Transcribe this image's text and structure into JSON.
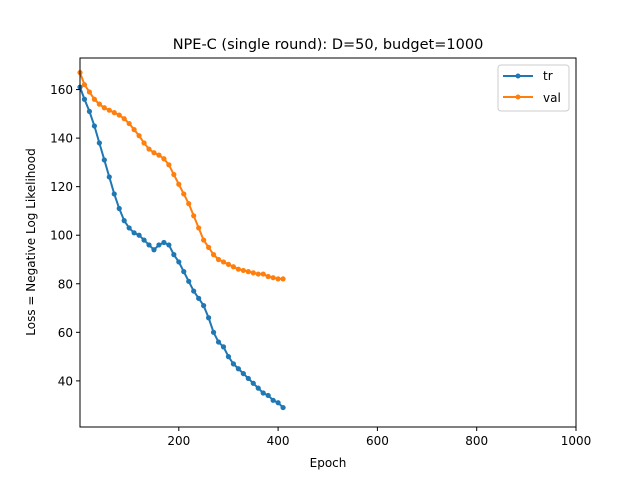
{
  "chart_data": {
    "type": "line",
    "title": "NPE-C (single round): D=50, budget=1000",
    "xlabel": "Epoch",
    "ylabel": "Loss = Negative Log Likelihood",
    "xlim": [
      1,
      1000
    ],
    "ylim": [
      21,
      173
    ],
    "xticks": [
      200,
      400,
      600,
      800,
      1000
    ],
    "yticks": [
      40,
      60,
      80,
      100,
      120,
      140,
      160
    ],
    "grid": false,
    "legend_position": "upper right",
    "marker": "circle",
    "series": [
      {
        "name": "tr",
        "color": "#1f77b4",
        "points": [
          [
            1,
            161
          ],
          [
            10,
            156
          ],
          [
            20,
            151
          ],
          [
            30,
            145
          ],
          [
            40,
            138
          ],
          [
            50,
            131
          ],
          [
            60,
            124
          ],
          [
            70,
            117
          ],
          [
            80,
            111
          ],
          [
            90,
            106
          ],
          [
            100,
            103
          ],
          [
            110,
            101
          ],
          [
            120,
            100
          ],
          [
            130,
            98
          ],
          [
            140,
            96
          ],
          [
            150,
            94
          ],
          [
            160,
            96
          ],
          [
            170,
            97
          ],
          [
            180,
            96
          ],
          [
            190,
            92
          ],
          [
            200,
            89
          ],
          [
            210,
            85
          ],
          [
            220,
            81
          ],
          [
            230,
            77
          ],
          [
            240,
            74
          ],
          [
            250,
            71
          ],
          [
            260,
            66
          ],
          [
            270,
            60
          ],
          [
            280,
            56
          ],
          [
            290,
            54
          ],
          [
            300,
            50
          ],
          [
            310,
            47
          ],
          [
            320,
            45
          ],
          [
            330,
            43
          ],
          [
            340,
            41
          ],
          [
            350,
            39
          ],
          [
            360,
            37
          ],
          [
            370,
            35
          ],
          [
            380,
            34
          ],
          [
            390,
            32
          ],
          [
            400,
            31
          ],
          [
            410,
            29
          ]
        ]
      },
      {
        "name": "val",
        "color": "#ff7f0e",
        "points": [
          [
            1,
            167
          ],
          [
            10,
            162
          ],
          [
            20,
            159
          ],
          [
            30,
            156
          ],
          [
            40,
            154
          ],
          [
            50,
            152.5
          ],
          [
            60,
            151.5
          ],
          [
            70,
            150.5
          ],
          [
            80,
            149.5
          ],
          [
            90,
            148
          ],
          [
            100,
            146
          ],
          [
            110,
            143.5
          ],
          [
            120,
            141
          ],
          [
            130,
            138
          ],
          [
            140,
            135.5
          ],
          [
            150,
            134
          ],
          [
            160,
            133
          ],
          [
            170,
            131.5
          ],
          [
            180,
            129
          ],
          [
            190,
            125
          ],
          [
            200,
            121
          ],
          [
            210,
            117
          ],
          [
            220,
            113
          ],
          [
            230,
            108
          ],
          [
            240,
            103
          ],
          [
            250,
            98
          ],
          [
            260,
            95
          ],
          [
            270,
            92
          ],
          [
            280,
            90
          ],
          [
            290,
            89
          ],
          [
            300,
            88
          ],
          [
            310,
            87
          ],
          [
            320,
            86
          ],
          [
            330,
            85.5
          ],
          [
            340,
            85
          ],
          [
            350,
            84.5
          ],
          [
            360,
            84
          ],
          [
            370,
            84
          ],
          [
            380,
            83
          ],
          [
            390,
            82.5
          ],
          [
            400,
            82
          ],
          [
            410,
            82
          ]
        ]
      }
    ]
  }
}
